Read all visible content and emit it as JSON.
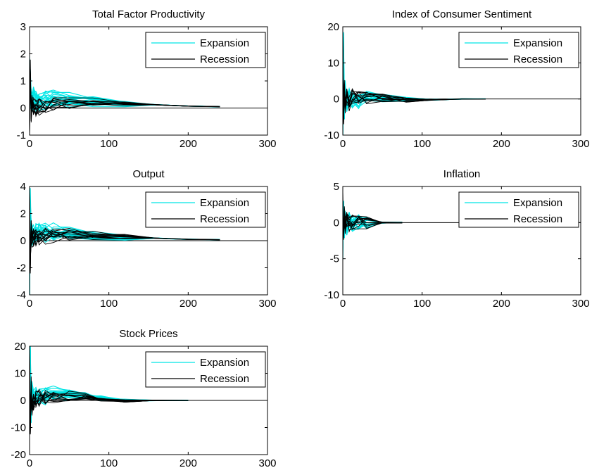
{
  "colors": {
    "expansion": "#00e5e5",
    "recession": "#000000",
    "axes": "#000000",
    "background": "#ffffff"
  },
  "chart_data": [
    {
      "type": "line",
      "title": "Total Factor Productivity",
      "xlim": [
        0,
        300
      ],
      "ylim": [
        -1,
        3
      ],
      "xticks": [
        "0",
        "100",
        "200",
        "300"
      ],
      "yticks": [
        "-1",
        "0",
        "1",
        "2",
        "3"
      ],
      "legend": [
        "Expansion",
        "Recession"
      ],
      "legend_position": "top-right",
      "grid": false,
      "series": [
        {
          "name": "Expansion",
          "x": [
            0,
            1,
            2,
            3,
            5,
            8,
            12,
            20,
            30,
            50,
            80,
            120,
            160,
            200,
            240
          ],
          "y": [
            1.5,
            0.8,
            0.3,
            0.35,
            0.4,
            0.35,
            0.32,
            0.35,
            0.38,
            0.35,
            0.28,
            0.2,
            0.12,
            0.07,
            0.05
          ]
        },
        {
          "name": "Recession",
          "x": [
            0,
            1,
            2,
            3,
            5,
            8,
            12,
            20,
            30,
            50,
            80,
            120,
            160,
            200,
            240
          ],
          "y": [
            -0.8,
            1.3,
            -0.3,
            0.2,
            0.1,
            0.0,
            0.05,
            0.1,
            0.15,
            0.2,
            0.22,
            0.18,
            0.12,
            0.07,
            0.05
          ]
        }
      ]
    },
    {
      "type": "line",
      "title": "Index of Consumer Sentiment",
      "xlim": [
        0,
        300
      ],
      "ylim": [
        -10,
        20
      ],
      "xticks": [
        "0",
        "100",
        "200",
        "300"
      ],
      "yticks": [
        "-10",
        "0",
        "10",
        "20"
      ],
      "legend": [
        "Expansion",
        "Recession"
      ],
      "legend_position": "top-right",
      "grid": false,
      "series": [
        {
          "name": "Expansion",
          "x": [
            0,
            1,
            2,
            3,
            5,
            8,
            12,
            20,
            30,
            50,
            80,
            120,
            150,
            180
          ],
          "y": [
            -8,
            12,
            -3,
            2,
            -1,
            1,
            -0.5,
            -1,
            0.5,
            0.3,
            -0.2,
            -0.2,
            0,
            0
          ]
        },
        {
          "name": "Recession",
          "x": [
            0,
            1,
            2,
            3,
            5,
            8,
            12,
            20,
            30,
            50,
            80,
            120,
            150,
            180
          ],
          "y": [
            17,
            -5,
            4,
            -2,
            1,
            -1,
            0.5,
            0.2,
            0.5,
            0.4,
            -0.3,
            -0.2,
            0,
            0
          ]
        }
      ]
    },
    {
      "type": "line",
      "title": "Output",
      "xlim": [
        0,
        300
      ],
      "ylim": [
        -4,
        4
      ],
      "xticks": [
        "0",
        "100",
        "200",
        "300"
      ],
      "yticks": [
        "-4",
        "-2",
        "0",
        "2",
        "4"
      ],
      "legend": [
        "Expansion",
        "Recession"
      ],
      "legend_position": "top-right",
      "grid": false,
      "series": [
        {
          "name": "Expansion",
          "x": [
            0,
            1,
            2,
            3,
            5,
            8,
            12,
            20,
            30,
            50,
            80,
            120,
            160,
            200,
            240
          ],
          "y": [
            -3.5,
            2.5,
            0.8,
            0.6,
            0.5,
            0.6,
            0.7,
            0.75,
            0.7,
            0.65,
            0.45,
            0.3,
            0.18,
            0.1,
            0.08
          ]
        },
        {
          "name": "Recession",
          "x": [
            0,
            1,
            2,
            3,
            5,
            8,
            12,
            20,
            30,
            50,
            80,
            120,
            160,
            200,
            240
          ],
          "y": [
            3.0,
            -1.5,
            1.0,
            0.3,
            0.2,
            0.3,
            0.4,
            0.45,
            0.5,
            0.55,
            0.45,
            0.3,
            0.18,
            0.1,
            0.08
          ]
        }
      ]
    },
    {
      "type": "line",
      "title": "Inflation",
      "xlim": [
        0,
        300
      ],
      "ylim": [
        -10,
        5
      ],
      "xticks": [
        "0",
        "100",
        "200",
        "300"
      ],
      "yticks": [
        "-10",
        "-5",
        "0",
        "5"
      ],
      "legend": [
        "Expansion",
        "Recession"
      ],
      "legend_position": "top-right",
      "grid": false,
      "series": [
        {
          "name": "Expansion",
          "x": [
            0,
            1,
            2,
            3,
            5,
            8,
            12,
            20,
            30,
            50,
            75
          ],
          "y": [
            -3.5,
            2.0,
            -1.0,
            0.5,
            -0.5,
            0.3,
            -0.2,
            0.1,
            0.0,
            0.0,
            0.0
          ]
        },
        {
          "name": "Recession",
          "x": [
            0,
            1,
            2,
            3,
            5,
            8,
            12,
            20,
            30,
            50,
            75
          ],
          "y": [
            3.2,
            -1.5,
            1.0,
            -0.5,
            0.4,
            -0.2,
            0.1,
            -0.1,
            0.0,
            0.0,
            0.0
          ]
        }
      ]
    },
    {
      "type": "line",
      "title": "Stock Prices",
      "xlim": [
        0,
        300
      ],
      "ylim": [
        -20,
        20
      ],
      "xticks": [
        "0",
        "100",
        "200",
        "300"
      ],
      "yticks": [
        "-20",
        "-10",
        "0",
        "10",
        "20"
      ],
      "legend": [
        "Expansion",
        "Recession"
      ],
      "legend_position": "top-right",
      "grid": false,
      "series": [
        {
          "name": "Expansion",
          "x": [
            0,
            1,
            2,
            3,
            5,
            8,
            12,
            20,
            30,
            50,
            70,
            90,
            120,
            160,
            200
          ],
          "y": [
            -9,
            14,
            -4,
            3,
            1,
            2,
            1.5,
            2,
            2.5,
            2,
            1.8,
            0.8,
            0,
            0,
            0
          ]
        },
        {
          "name": "Recession",
          "x": [
            0,
            1,
            2,
            3,
            5,
            8,
            12,
            20,
            30,
            50,
            70,
            90,
            120,
            160,
            200
          ],
          "y": [
            16,
            -10,
            5,
            -3,
            -1,
            0.5,
            1,
            1.2,
            1.5,
            1.8,
            1.6,
            0.5,
            -0.2,
            0,
            0
          ]
        }
      ]
    }
  ]
}
